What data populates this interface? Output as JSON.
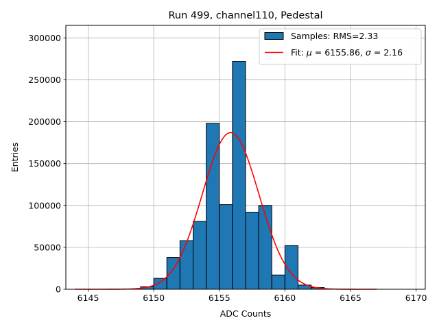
{
  "chart_data": {
    "type": "bar",
    "title": "Run 499, channel110, Pedestal",
    "xlabel": "ADC Counts",
    "ylabel": "Entries",
    "xlim": [
      6143.3,
      6170.7
    ],
    "ylim": [
      0,
      315000
    ],
    "xticks": [
      6145,
      6150,
      6155,
      6160,
      6165,
      6170
    ],
    "yticks": [
      0,
      50000,
      100000,
      150000,
      200000,
      250000,
      300000
    ],
    "grid": true,
    "legend_position": "top-right",
    "bins": {
      "edges": [
        6149,
        6150,
        6151,
        6152,
        6153,
        6154,
        6155,
        6156,
        6157,
        6158,
        6159,
        6160,
        6161,
        6162,
        6163
      ],
      "values": [
        3000,
        13000,
        38000,
        58000,
        81000,
        198000,
        101000,
        272000,
        92000,
        100000,
        17000,
        52000,
        5000,
        2000
      ],
      "color": "#1f77b4",
      "label": "Samples: RMS=2.33"
    },
    "fit": {
      "label_prefix": "Fit: ",
      "label_mu": "μ",
      "label_mid": " = 6155.86, ",
      "label_sigma": "σ",
      "label_end": " = 2.16",
      "mu": 6155.86,
      "sigma": 2.16,
      "amplitude": 187000,
      "x_range": [
        6144,
        6167
      ],
      "color": "#ff0000"
    }
  }
}
